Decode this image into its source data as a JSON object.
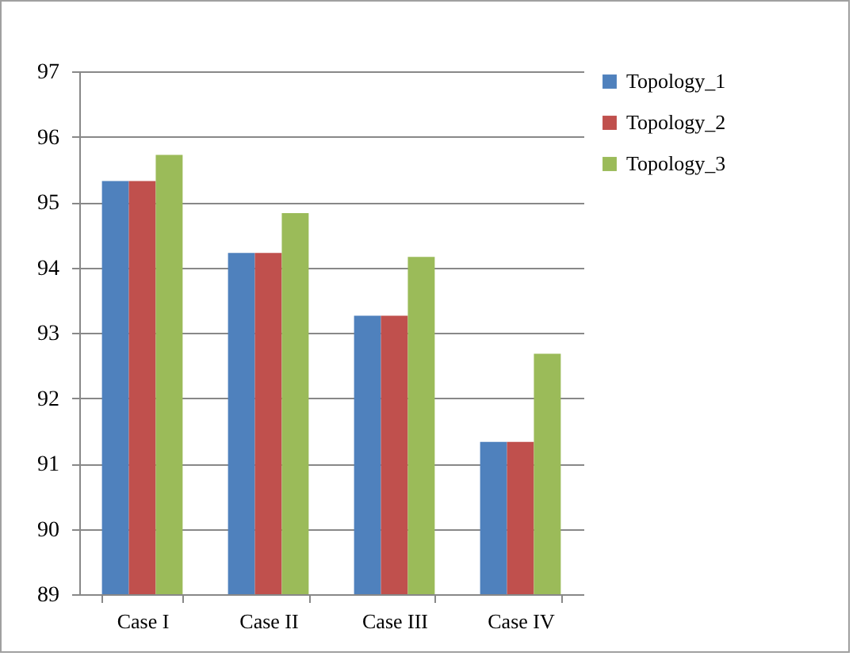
{
  "chart_data": {
    "type": "bar",
    "categories": [
      "Case I",
      "Case II",
      "Case III",
      "Case IV"
    ],
    "series": [
      {
        "name": "Topology_1",
        "color": "#4f81bd",
        "values": [
          95.32,
          94.22,
          93.26,
          91.33
        ]
      },
      {
        "name": "Topology_2",
        "color": "#c0504d",
        "values": [
          95.32,
          94.22,
          93.26,
          91.33
        ]
      },
      {
        "name": "Topology_3",
        "color": "#9bbb59",
        "values": [
          95.72,
          94.83,
          94.16,
          92.68
        ]
      }
    ],
    "ylim": [
      89,
      97
    ],
    "yticks": [
      89,
      90,
      91,
      92,
      93,
      94,
      95,
      96,
      97
    ],
    "grid": "y",
    "legend": "right"
  }
}
